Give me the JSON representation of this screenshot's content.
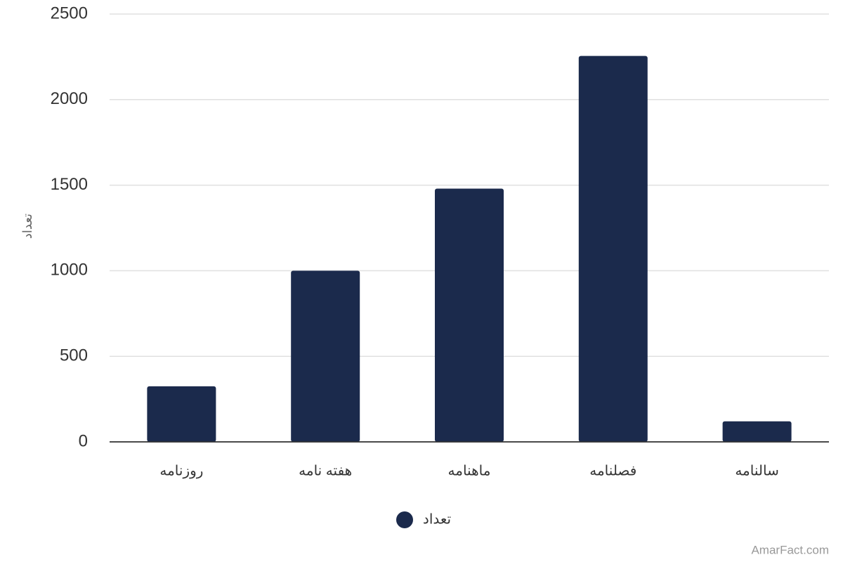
{
  "chart_data": {
    "type": "bar",
    "y_label": "تعداد",
    "categories": [
      "روزنامه",
      "هفته نامه",
      "ماهنامه",
      "فصلنامه",
      "سالنامه"
    ],
    "series": [
      {
        "name": "تعداد",
        "color": "#1b2a4c",
        "values": [
          325,
          1000,
          1480,
          2255,
          120
        ]
      }
    ],
    "ylim": [
      0,
      2500
    ],
    "yticks": [
      0,
      500,
      1000,
      1500,
      2000,
      2500
    ],
    "grid": true,
    "legend": "bottom",
    "credit": "AmarFact.com"
  }
}
